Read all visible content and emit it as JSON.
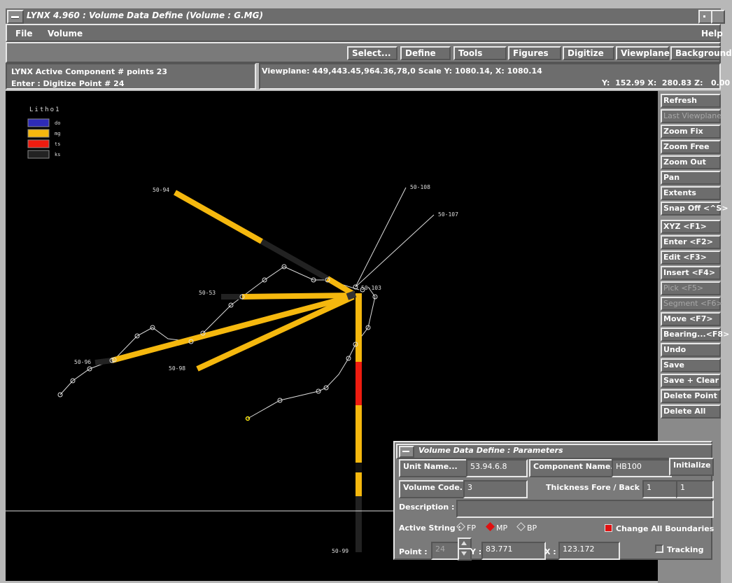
{
  "window": {
    "title": "LYNX 4.960 : Volume Data Define (Volume : G.MG)"
  },
  "menu": {
    "file": "File",
    "volume": "Volume",
    "help": "Help"
  },
  "toolbar": [
    "Select...",
    "Define",
    "Tools",
    "Figures",
    "Digitize",
    "Viewplane",
    "Background"
  ],
  "status": {
    "line1": "LYNX Active Component # points 23",
    "line2": "Enter : Digitize Point # 24",
    "viewplane": "Viewplane: 449,443.45,964.36,78,0 Scale Y: 1080.14, X: 1080.14",
    "coords": "Y:  152.99 X:  280.83 Z:   0.00"
  },
  "sidebar": [
    {
      "label": "Refresh",
      "enabled": true
    },
    {
      "label": "Last Viewplane",
      "enabled": false
    },
    {
      "label": "Zoom Fix",
      "enabled": true
    },
    {
      "label": "Zoom Free",
      "enabled": true
    },
    {
      "label": "Zoom Out",
      "enabled": true
    },
    {
      "label": "Pan",
      "enabled": true
    },
    {
      "label": "Extents",
      "enabled": true
    },
    {
      "label": "Snap Off <^S>",
      "enabled": true
    },
    {
      "label": "XYZ <F1>",
      "enabled": true
    },
    {
      "label": "Enter <F2>",
      "enabled": true
    },
    {
      "label": "Edit <F3>",
      "enabled": true
    },
    {
      "label": "Insert <F4>",
      "enabled": true
    },
    {
      "label": "Pick <F5>",
      "enabled": false
    },
    {
      "label": "Segment <F6>",
      "enabled": false
    },
    {
      "label": "Move <F7>",
      "enabled": true
    },
    {
      "label": "Bearing...<F8>",
      "enabled": true
    },
    {
      "label": "Undo",
      "enabled": true
    },
    {
      "label": "Save",
      "enabled": true
    },
    {
      "label": "Save + Clear",
      "enabled": true
    },
    {
      "label": "Delete Point",
      "enabled": true
    },
    {
      "label": "Delete All",
      "enabled": true
    }
  ],
  "legend": {
    "title": "Litho1",
    "items": [
      {
        "code": "do",
        "color": "#2e2bb8"
      },
      {
        "code": "mg",
        "color": "#f5b80e"
      },
      {
        "code": "ts",
        "color": "#ee1c10"
      },
      {
        "code": "ks",
        "color": "#222222"
      }
    ]
  },
  "drillholes": [
    "50-94",
    "50-108",
    "50-107",
    "50-103",
    "50-53",
    "50-96",
    "50-98",
    "50-99"
  ],
  "dialog": {
    "title": "Volume Data Define : Parameters",
    "unit_name_btn": "Unit Name...",
    "unit_name_value": "53.94.6.8",
    "component_name_btn": "Component Name...",
    "component_name_value": "HB100",
    "initialize_btn": "Initialize",
    "volume_code_btn": "Volume Code...",
    "volume_code_value": "3",
    "thickness_label": "Thickness Fore / Back :",
    "thickness_fore": "1",
    "thickness_back": "1",
    "description_label": "Description :",
    "description_value": "",
    "active_string_label": "Active String :",
    "active_string_options": [
      "FP",
      "MP",
      "BP"
    ],
    "active_string_selected": "MP",
    "change_all_label": "Change All Boundaries",
    "change_all_checked": true,
    "point_label": "Point :",
    "point_value": "24",
    "y_label": "Y :",
    "y_value": "83.771",
    "x_label": "X :",
    "x_value": "123.172",
    "tracking_label": "Tracking",
    "tracking_checked": false
  }
}
